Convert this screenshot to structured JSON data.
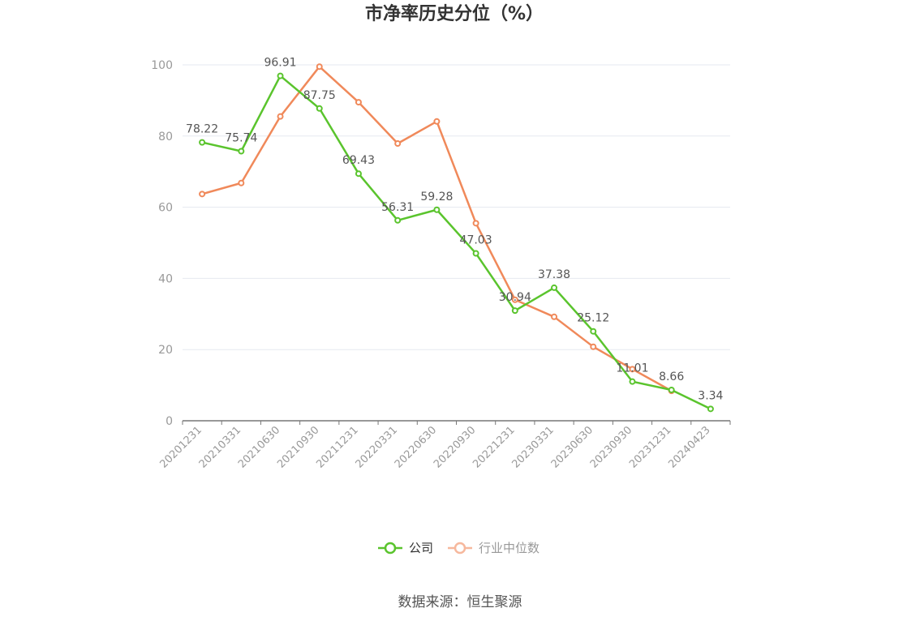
{
  "chart_data": {
    "type": "line",
    "title": "市净率历史分位（%）",
    "categories": [
      "20201231",
      "20210331",
      "20210630",
      "20210930",
      "20211231",
      "20220331",
      "20220630",
      "20220930",
      "20221231",
      "20230331",
      "20230630",
      "20230930",
      "20231231",
      "20240423"
    ],
    "ylim": [
      0,
      100
    ],
    "yticks": [
      0,
      20,
      40,
      60,
      80,
      100
    ],
    "grid": true,
    "legend_position": "bottom-center",
    "series": [
      {
        "name": "公司",
        "color": "#5ac42d",
        "show_labels": true,
        "values": [
          78.22,
          75.74,
          96.91,
          87.75,
          69.43,
          56.31,
          59.28,
          47.03,
          30.94,
          37.38,
          25.12,
          11.01,
          8.66,
          3.34
        ],
        "labels": [
          "78.22",
          "75.74",
          "96.91",
          "87.75",
          "69.43",
          "56.31",
          "59.28",
          "47.03",
          "30.94",
          "37.38",
          "25.12",
          "11.01",
          "8.66",
          "3.34"
        ]
      },
      {
        "name": "行业中位数",
        "color": "#f0895a",
        "legend_color": "#f6b89d",
        "show_labels": false,
        "values": [
          63.7,
          66.8,
          85.5,
          99.5,
          89.5,
          77.9,
          84.1,
          55.5,
          34.0,
          29.2,
          20.8,
          14.5,
          8.4,
          null
        ]
      }
    ]
  },
  "source": "数据来源：恒生聚源"
}
